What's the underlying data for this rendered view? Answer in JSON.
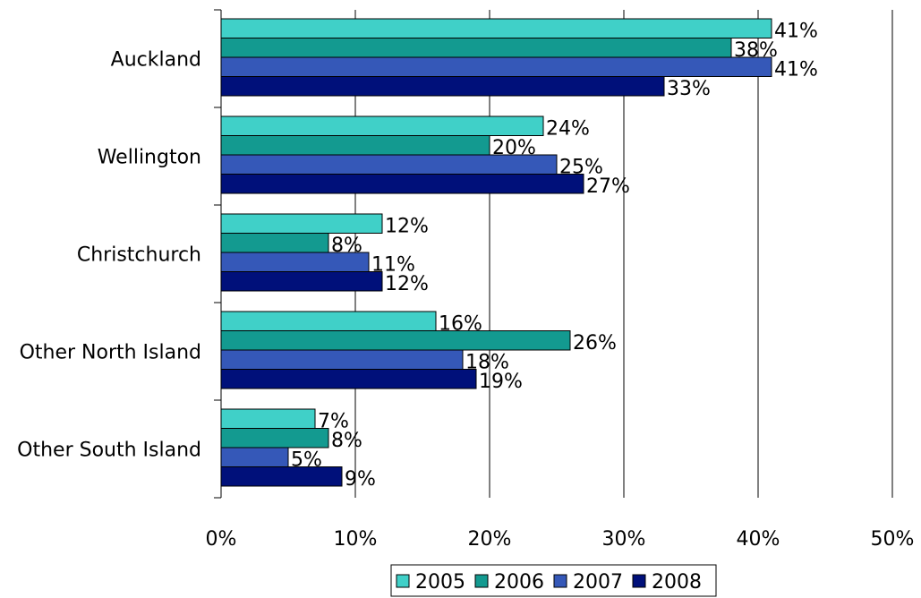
{
  "chart_data": {
    "type": "bar",
    "orientation": "horizontal",
    "categories": [
      "Auckland",
      "Wellington",
      "Christchurch",
      "Other North Island",
      "Other South Island"
    ],
    "series": [
      {
        "name": "2005",
        "color": "#40D0C8",
        "values": [
          41,
          24,
          12,
          16,
          7
        ],
        "labels": [
          "41%",
          "24%",
          "12%",
          "16%",
          "7%"
        ]
      },
      {
        "name": "2006",
        "color": "#139A90",
        "values": [
          38,
          20,
          8,
          26,
          8
        ],
        "labels": [
          "38%",
          "20%",
          "8%",
          "26%",
          "8%"
        ]
      },
      {
        "name": "2007",
        "color": "#3558B8",
        "values": [
          41,
          25,
          11,
          18,
          5
        ],
        "labels": [
          "41%",
          "25%",
          "11%",
          "18%",
          "5%"
        ]
      },
      {
        "name": "2008",
        "color": "#00107A",
        "values": [
          33,
          27,
          12,
          19,
          9
        ],
        "labels": [
          "33%",
          "27%",
          "12%",
          "19%",
          "9%"
        ]
      }
    ],
    "xlim": [
      0,
      50
    ],
    "xticks": [
      0,
      10,
      20,
      30,
      40,
      50
    ],
    "xtick_labels": [
      "0%",
      "10%",
      "20%",
      "30%",
      "40%",
      "50%"
    ],
    "grid": "vertical",
    "legend": "bottom",
    "title": "",
    "xlabel": "",
    "ylabel": ""
  }
}
